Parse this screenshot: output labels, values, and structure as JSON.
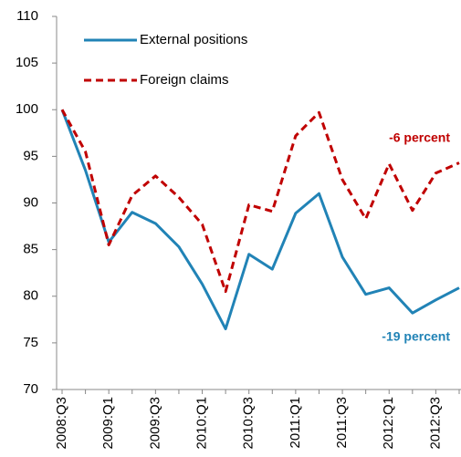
{
  "chart_data": {
    "type": "line",
    "categories": [
      "2008:Q3",
      null,
      "2009:Q1",
      null,
      "2009:Q3",
      null,
      "2010:Q1",
      null,
      "2010:Q3",
      null,
      "2011:Q1",
      null,
      "2011:Q3",
      null,
      "2012:Q1",
      null,
      "2012:Q3",
      null
    ],
    "series": [
      {
        "name": "External positions",
        "color": "#2183b6",
        "dashed": false,
        "annotation": "-19 percent",
        "values": [
          100,
          93.5,
          85.8,
          89,
          87.8,
          85.3,
          81.3,
          76.5,
          84.5,
          82.9,
          88.9,
          91,
          84.2,
          80.2,
          80.9,
          78.2,
          79.6,
          80.9
        ]
      },
      {
        "name": "Foreign claims",
        "color": "#c00000",
        "dashed": true,
        "annotation": "-6 percent",
        "values": [
          100,
          95.5,
          85.5,
          90.8,
          92.9,
          90.6,
          87.7,
          80.5,
          89.8,
          89.1,
          97.2,
          99.7,
          92.5,
          88.3,
          94.2,
          89.2,
          93.2,
          94.3
        ]
      }
    ],
    "ylim": [
      70,
      110
    ],
    "yticks": [
      70,
      75,
      80,
      85,
      90,
      95,
      100,
      105,
      110
    ],
    "grid": false
  }
}
